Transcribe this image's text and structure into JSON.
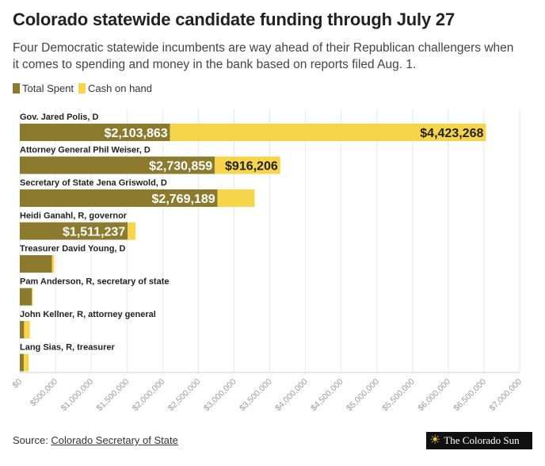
{
  "title": "Colorado statewide candidate funding through July 27",
  "subtitle": "Four Democratic statewide incumbents are way ahead of their Republican challengers when it comes to spending and money in the bank based on reports filed Aug. 1.",
  "legend": {
    "spent_label": "Total Spent",
    "cash_label": "Cash on hand"
  },
  "colors": {
    "spent": "#8c7a2e",
    "cash": "#f7d54a",
    "grid": "#e6e6e6",
    "axis_text": "#9a9a9a"
  },
  "footer": {
    "source_prefix": "Source: ",
    "source_link": "Colorado Secretary of State",
    "brand": "The Colorado Sun",
    "brand_icon": "sun-icon"
  },
  "chart_data": {
    "type": "bar",
    "orientation": "horizontal",
    "stacked": true,
    "title": "Colorado statewide candidate funding through July 27",
    "xlim": [
      0,
      7000000
    ],
    "x_ticks": [
      "$0",
      "$500,000",
      "$1,000,000",
      "$1,500,000",
      "$2,000,000",
      "$2,500,000",
      "$3,000,000",
      "$3,500,000",
      "$4,000,000",
      "$4,500,000",
      "$5,000,000",
      "$5,500,000",
      "$6,000,000",
      "$6,500,000",
      "$7,000,000"
    ],
    "x_tick_values": [
      0,
      500000,
      1000000,
      1500000,
      2000000,
      2500000,
      3000000,
      3500000,
      4000000,
      4500000,
      5000000,
      5500000,
      6000000,
      6500000,
      7000000
    ],
    "grid": true,
    "legend_position": "top-left",
    "categories": [
      "Gov. Jared Polis, D",
      "Attorney General Phil Weiser, D",
      "Secretary of State Jena Griswold, D",
      "Heidi Ganahl, R, governor",
      "Treasurer David Young, D",
      "Pam Anderson, R, secretary of state",
      "John Kellner, R, attorney general",
      "Lang Sias, R, treasurer"
    ],
    "series": [
      {
        "name": "Total Spent",
        "values": [
          2103863,
          2730859,
          2769189,
          1511237,
          450000,
          170000,
          60000,
          55000
        ],
        "labels": [
          "$2,103,863",
          "$2,730,859",
          "$2,769,189",
          "$1,511,237",
          "",
          "",
          "",
          ""
        ]
      },
      {
        "name": "Cash on hand",
        "values": [
          4423268,
          916206,
          520000,
          110000,
          30000,
          10000,
          80000,
          70000
        ],
        "labels": [
          "$4,423,268",
          "$916,206",
          "",
          "",
          "",
          "",
          "",
          ""
        ]
      }
    ]
  }
}
